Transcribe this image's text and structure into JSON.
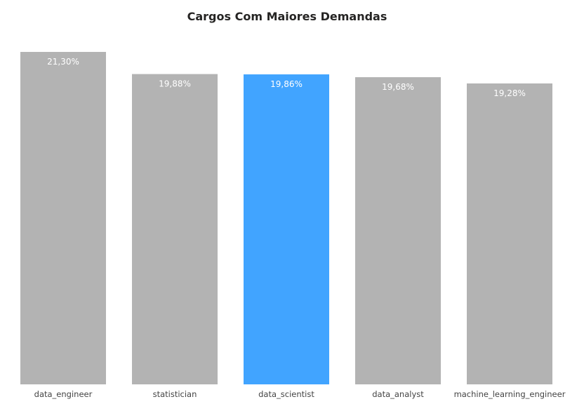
{
  "chart_data": {
    "type": "bar",
    "title": "Cargos Com Maiores Demandas",
    "categories": [
      "data_engineer",
      "statistician",
      "data_scientist",
      "data_analyst",
      "machine_learning_engineer"
    ],
    "values": [
      21.3,
      19.88,
      19.86,
      19.68,
      19.28
    ],
    "data_labels": [
      "21,30%",
      "19,88%",
      "19,86%",
      "19,68%",
      "19,28%"
    ],
    "ylim": [
      0,
      21.3
    ],
    "grid": false,
    "legend": "none",
    "highlight_index": 2,
    "colors": {
      "bar": "#B3B3B3",
      "highlight": "#41A4FF"
    }
  }
}
